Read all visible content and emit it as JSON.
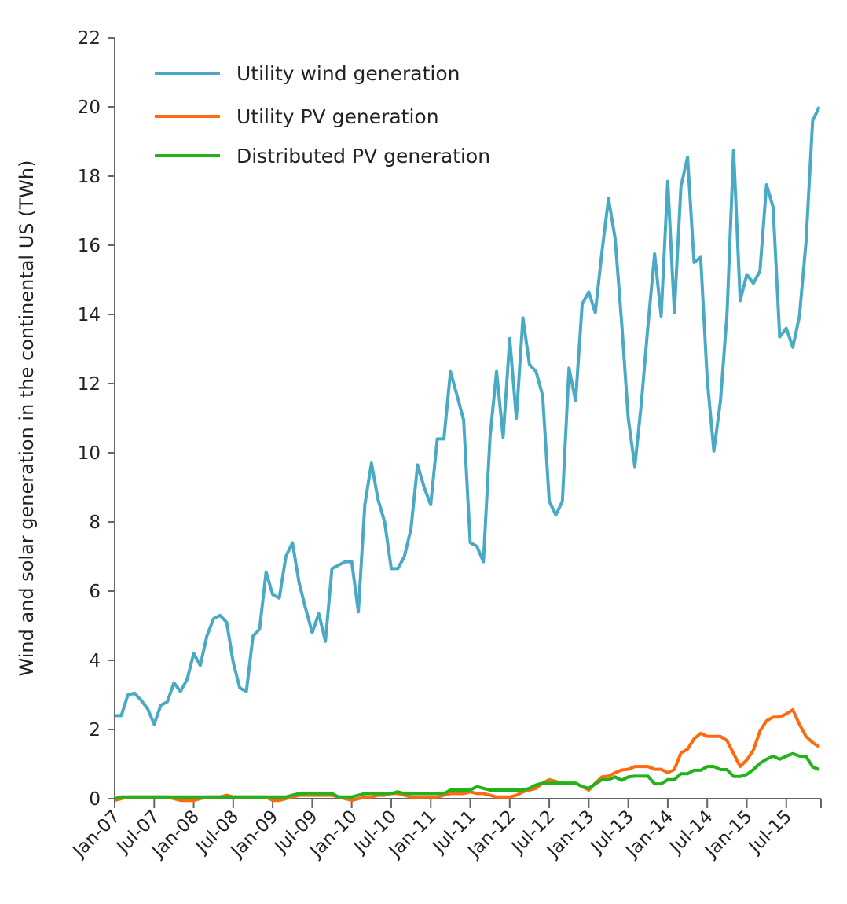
{
  "chart_data": {
    "type": "line",
    "title": "",
    "xlabel": "",
    "ylabel": "Wind and solar generation in the continental US (TWh)",
    "ylim": [
      0,
      22
    ],
    "yticks": [
      "0",
      "2",
      "4",
      "6",
      "8",
      "10",
      "12",
      "14",
      "16",
      "18",
      "20",
      "22"
    ],
    "x_start": "Jan-07",
    "x_end": "Dec-15",
    "xtick_labels": [
      "Jan-07",
      "Jul-07",
      "Jan-08",
      "Jul-08",
      "Jan-09",
      "Jul-09",
      "Jan-10",
      "Jul-10",
      "Jan-11",
      "Jul-11",
      "Jan-12",
      "Jul-12",
      "Jan-13",
      "Jul-13",
      "Jan-14",
      "Jul-14",
      "Jan-15",
      "Jul-15"
    ],
    "grid": false,
    "legend_position": "top-left",
    "series": [
      {
        "name": "Utility wind generation",
        "color": "#4aaac6",
        "values": [
          2.4,
          2.4,
          3.0,
          3.05,
          2.85,
          2.6,
          2.15,
          2.7,
          2.8,
          3.35,
          3.1,
          3.45,
          4.2,
          3.85,
          4.7,
          5.2,
          5.3,
          5.1,
          3.95,
          3.2,
          3.1,
          4.7,
          4.9,
          6.55,
          5.9,
          5.8,
          7.0,
          7.4,
          6.25,
          5.5,
          4.8,
          5.35,
          4.55,
          6.65,
          6.75,
          6.85,
          6.85,
          5.4,
          8.5,
          9.7,
          8.65,
          8.0,
          6.65,
          6.65,
          7.0,
          7.8,
          9.65,
          9.0,
          8.5,
          10.4,
          10.4,
          12.35,
          11.65,
          10.95,
          7.4,
          7.3,
          6.85,
          10.45,
          12.35,
          10.45,
          13.3,
          11.0,
          13.9,
          12.55,
          12.35,
          11.65,
          8.6,
          8.2,
          8.6,
          12.45,
          11.5,
          14.3,
          14.65,
          14.05,
          15.8,
          17.35,
          16.2,
          13.75,
          11.0,
          9.6,
          11.45,
          13.7,
          15.75,
          13.95,
          17.85,
          14.05,
          17.7,
          18.55,
          15.5,
          15.65,
          12.1,
          10.05,
          11.5,
          14.0,
          18.75,
          14.4,
          15.15,
          14.9,
          15.25,
          17.75,
          17.1,
          13.35,
          13.6,
          13.05,
          13.95,
          16.1,
          19.6,
          20.0
        ]
      },
      {
        "name": "Utility PV generation",
        "color": "#ff6a10",
        "values": [
          -0.05,
          0,
          0.05,
          0.05,
          0.05,
          0.05,
          0.05,
          0.05,
          0.05,
          0,
          -0.05,
          -0.05,
          -0.05,
          0,
          0.05,
          0.05,
          0.05,
          0.1,
          0.05,
          0.05,
          0.05,
          0.05,
          0.05,
          0.05,
          -0.05,
          -0.05,
          0,
          0.05,
          0.1,
          0.1,
          0.1,
          0.1,
          0.1,
          0.1,
          0.05,
          0,
          -0.05,
          0,
          0.05,
          0.05,
          0.1,
          0.1,
          0.15,
          0.15,
          0.1,
          0.05,
          0.05,
          0.05,
          0.05,
          0.05,
          0.1,
          0.15,
          0.15,
          0.15,
          0.2,
          0.15,
          0.15,
          0.1,
          0.05,
          0.05,
          0.05,
          0.1,
          0.2,
          0.25,
          0.3,
          0.45,
          0.55,
          0.5,
          0.45,
          0.45,
          0.45,
          0.35,
          0.25,
          0.45,
          0.63,
          0.65,
          0.75,
          0.83,
          0.85,
          0.93,
          0.93,
          0.93,
          0.85,
          0.85,
          0.75,
          0.84,
          1.32,
          1.43,
          1.73,
          1.89,
          1.8,
          1.8,
          1.8,
          1.68,
          1.3,
          0.93,
          1.12,
          1.4,
          1.95,
          2.25,
          2.36,
          2.36,
          2.45,
          2.57,
          2.15,
          1.8,
          1.62,
          1.5
        ]
      },
      {
        "name": "Distributed PV generation",
        "color": "#22b21a",
        "values": [
          0,
          0.05,
          0.05,
          0.05,
          0.05,
          0.05,
          0.05,
          0.05,
          0.05,
          0.05,
          0.05,
          0.05,
          0.05,
          0.05,
          0.05,
          0.05,
          0.05,
          0.05,
          0.05,
          0.05,
          0.05,
          0.05,
          0.05,
          0.05,
          0.05,
          0.05,
          0.05,
          0.1,
          0.15,
          0.15,
          0.15,
          0.15,
          0.15,
          0.15,
          0.05,
          0.05,
          0.05,
          0.1,
          0.15,
          0.15,
          0.15,
          0.15,
          0.15,
          0.2,
          0.15,
          0.15,
          0.15,
          0.15,
          0.15,
          0.15,
          0.15,
          0.25,
          0.25,
          0.25,
          0.25,
          0.35,
          0.3,
          0.25,
          0.25,
          0.25,
          0.25,
          0.25,
          0.25,
          0.3,
          0.4,
          0.45,
          0.45,
          0.45,
          0.45,
          0.45,
          0.45,
          0.35,
          0.3,
          0.43,
          0.55,
          0.55,
          0.63,
          0.53,
          0.63,
          0.65,
          0.65,
          0.65,
          0.43,
          0.43,
          0.55,
          0.55,
          0.72,
          0.72,
          0.82,
          0.82,
          0.93,
          0.93,
          0.84,
          0.84,
          0.64,
          0.64,
          0.7,
          0.84,
          1.02,
          1.14,
          1.23,
          1.14,
          1.23,
          1.3,
          1.23,
          1.22,
          0.92,
          0.84
        ]
      }
    ]
  }
}
